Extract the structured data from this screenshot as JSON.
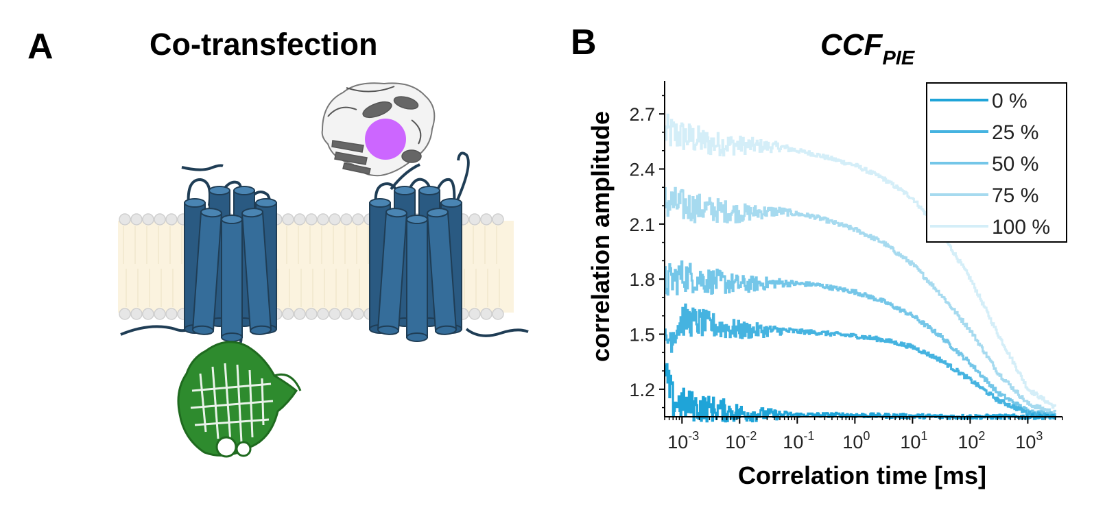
{
  "panel_a": {
    "letter": "A",
    "title": "Co-transfection"
  },
  "panel_b": {
    "letter": "B",
    "title_main": "CCF",
    "title_sub": "PIE"
  },
  "colors": {
    "membrane": "#fbf3df",
    "lipid_head": "#e6e6e6",
    "receptor": "#356d9a",
    "receptor_dark": "#2a5a82",
    "gfp": "#2e8b2e",
    "dye": "#cc66ff",
    "protein_gray": "#777777"
  },
  "chart_data": {
    "type": "line",
    "title": "CCF_PIE",
    "xlabel": "Correlation time [ms]",
    "ylabel": "correlation amplitude",
    "xscale": "log",
    "xlim": [
      0.0005,
      4000
    ],
    "ylim": [
      1.05,
      2.88
    ],
    "xticks": [
      {
        "value": 0.001,
        "base": "10",
        "exp": "-3"
      },
      {
        "value": 0.01,
        "base": "10",
        "exp": "-2"
      },
      {
        "value": 0.1,
        "base": "10",
        "exp": "-1"
      },
      {
        "value": 1,
        "base": "10",
        "exp": "0"
      },
      {
        "value": 10,
        "base": "10",
        "exp": "1"
      },
      {
        "value": 100,
        "base": "10",
        "exp": "2"
      },
      {
        "value": 1000,
        "base": "10",
        "exp": "3"
      }
    ],
    "yticks": [
      1.2,
      1.5,
      1.8,
      2.1,
      2.4,
      2.7
    ],
    "ytick_labels": [
      "1.2",
      "1.5",
      "1.8",
      "2.1",
      "2.4",
      "2.7"
    ],
    "legend_position": "top-right",
    "series": [
      {
        "name": "0 %",
        "color": "#1fa4d8",
        "points": [
          [
            0.0005,
            1.28
          ],
          [
            0.0007,
            1.13
          ],
          [
            0.001,
            1.12
          ],
          [
            0.002,
            1.1
          ],
          [
            0.004,
            1.09
          ],
          [
            0.01,
            1.07
          ],
          [
            0.05,
            1.06
          ],
          [
            0.5,
            1.06
          ],
          [
            5,
            1.055
          ],
          [
            50,
            1.05
          ],
          [
            500,
            1.05
          ],
          [
            3000,
            1.05
          ]
        ]
      },
      {
        "name": "25 %",
        "color": "#45b3e0",
        "points": [
          [
            0.0005,
            1.45
          ],
          [
            0.001,
            1.58
          ],
          [
            0.003,
            1.55
          ],
          [
            0.01,
            1.52
          ],
          [
            0.05,
            1.52
          ],
          [
            0.2,
            1.51
          ],
          [
            1,
            1.49
          ],
          [
            3,
            1.47
          ],
          [
            10,
            1.43
          ],
          [
            30,
            1.36
          ],
          [
            100,
            1.25
          ],
          [
            300,
            1.14
          ],
          [
            1000,
            1.07
          ],
          [
            3000,
            1.05
          ]
        ]
      },
      {
        "name": "50 %",
        "color": "#74c6e8",
        "points": [
          [
            0.0005,
            1.78
          ],
          [
            0.001,
            1.82
          ],
          [
            0.003,
            1.79
          ],
          [
            0.01,
            1.77
          ],
          [
            0.05,
            1.78
          ],
          [
            0.2,
            1.77
          ],
          [
            1,
            1.73
          ],
          [
            3,
            1.68
          ],
          [
            10,
            1.6
          ],
          [
            30,
            1.49
          ],
          [
            100,
            1.34
          ],
          [
            300,
            1.18
          ],
          [
            1000,
            1.08
          ],
          [
            3000,
            1.06
          ]
        ]
      },
      {
        "name": "75 %",
        "color": "#a6daef",
        "points": [
          [
            0.0005,
            2.22
          ],
          [
            0.001,
            2.2
          ],
          [
            0.003,
            2.18
          ],
          [
            0.01,
            2.16
          ],
          [
            0.05,
            2.17
          ],
          [
            0.2,
            2.14
          ],
          [
            1,
            2.07
          ],
          [
            3,
            2.0
          ],
          [
            10,
            1.88
          ],
          [
            30,
            1.72
          ],
          [
            100,
            1.52
          ],
          [
            300,
            1.29
          ],
          [
            1000,
            1.12
          ],
          [
            3000,
            1.07
          ]
        ]
      },
      {
        "name": "100 %",
        "color": "#d4eef8",
        "points": [
          [
            0.0005,
            2.6
          ],
          [
            0.001,
            2.58
          ],
          [
            0.003,
            2.54
          ],
          [
            0.01,
            2.53
          ],
          [
            0.05,
            2.52
          ],
          [
            0.2,
            2.48
          ],
          [
            1,
            2.42
          ],
          [
            3,
            2.35
          ],
          [
            10,
            2.24
          ],
          [
            30,
            2.06
          ],
          [
            100,
            1.8
          ],
          [
            300,
            1.5
          ],
          [
            1000,
            1.2
          ],
          [
            3000,
            1.1
          ]
        ]
      }
    ]
  }
}
